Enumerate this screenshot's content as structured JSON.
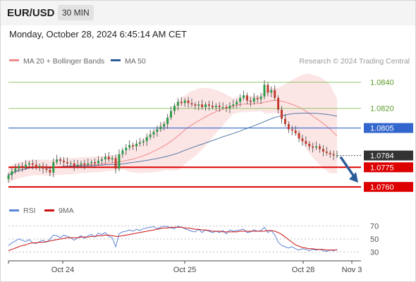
{
  "header": {
    "symbol": "EUR/USD",
    "timeframe": "30 MIN"
  },
  "datetime": "Monday, October 28, 2024 6:45:14 AM CET",
  "colors": {
    "up": "#2a9d4a",
    "down": "#c0392b",
    "bollinger": "#f08a8a",
    "ma50": "#2b5c9a",
    "resistance": "#7cbf4c",
    "pivot": "#3366cc",
    "support": "#dd0000",
    "rsi": "#5b84d6",
    "rsi_ma": "#cc1111",
    "arrow": "#2b5c9a",
    "last_price": "#333333"
  },
  "chart_data": [
    {
      "type": "candlestick",
      "instrument": "EUR/USD",
      "timeframe": "30 MIN",
      "legend": [
        {
          "name": "MA 20 + Bollinger Bands",
          "color": "#f08a8a"
        },
        {
          "name": "MA 50",
          "color": "#2b5c9a"
        }
      ],
      "credit": "Research © 2024 Trading Central",
      "ylim": [
        1.0752,
        1.085
      ],
      "x_ticks": [
        "Oct 24",
        "Oct 25",
        "Oct 28",
        "Nov 3"
      ],
      "levels": [
        {
          "value": 1.084,
          "label": "1.0840",
          "kind": "resistance"
        },
        {
          "value": 1.082,
          "label": "1.0820",
          "kind": "resistance"
        },
        {
          "value": 1.0805,
          "label": "1.0805",
          "kind": "pivot"
        },
        {
          "value": 1.0784,
          "label": "1.0784",
          "kind": "last"
        },
        {
          "value": 1.0775,
          "label": "1.0775",
          "kind": "support"
        },
        {
          "value": 1.076,
          "label": "1.0760",
          "kind": "support"
        }
      ],
      "projection": {
        "from": 1.0784,
        "to": 1.076
      },
      "close": [
        1.0769,
        1.0772,
        1.0774,
        1.0776,
        1.0775,
        1.0777,
        1.0778,
        1.0777,
        1.0775,
        1.0776,
        1.0774,
        1.0773,
        1.0771,
        1.0779,
        1.0781,
        1.078,
        1.0779,
        1.0778,
        1.0778,
        1.0776,
        1.0777,
        1.0778,
        1.0777,
        1.0778,
        1.0779,
        1.0778,
        1.078,
        1.0781,
        1.0783,
        1.0781,
        1.0782,
        1.0774,
        1.0785,
        1.0788,
        1.079,
        1.0792,
        1.0791,
        1.0793,
        1.0794,
        1.0795,
        1.0798,
        1.08,
        1.0802,
        1.0804,
        1.0806,
        1.0808,
        1.0813,
        1.0818,
        1.0822,
        1.0825,
        1.0824,
        1.0826,
        1.0824,
        1.0823,
        1.0822,
        1.0823,
        1.0821,
        1.0823,
        1.0822,
        1.0821,
        1.0822,
        1.0821,
        1.0821,
        1.082,
        1.0822,
        1.0823,
        1.0825,
        1.0828,
        1.083,
        1.0826,
        1.0825,
        1.0828,
        1.0827,
        1.0829,
        1.0838,
        1.0832,
        1.0834,
        1.0828,
        1.0819,
        1.0812,
        1.0808,
        1.0804,
        1.0803,
        1.0801,
        1.0797,
        1.0795,
        1.0793,
        1.0791,
        1.079,
        1.0791,
        1.0789,
        1.0787,
        1.0786,
        1.0785,
        1.0784,
        1.0784
      ]
    },
    {
      "type": "line",
      "legend": [
        {
          "name": "RSI",
          "color": "#5b84d6"
        },
        {
          "name": "9MA",
          "color": "#cc1111"
        }
      ],
      "ylim": [
        25,
        75
      ],
      "y_ticks": [
        70,
        50,
        30
      ],
      "series": [
        {
          "name": "RSI",
          "values": [
            40,
            44,
            47,
            50,
            48,
            46,
            49,
            44,
            43,
            46,
            48,
            45,
            50,
            56,
            55,
            52,
            56,
            54,
            52,
            48,
            52,
            55,
            51,
            55,
            57,
            53,
            59,
            57,
            60,
            54,
            52,
            38,
            58,
            61,
            62,
            64,
            62,
            65,
            63,
            66,
            67,
            68,
            69,
            66,
            68,
            70,
            69,
            67,
            66,
            70,
            68,
            66,
            64,
            62,
            61,
            65,
            60,
            64,
            62,
            60,
            62,
            60,
            63,
            58,
            64,
            62,
            63,
            64,
            65,
            60,
            61,
            64,
            62,
            63,
            68,
            60,
            63,
            56,
            45,
            40,
            38,
            36,
            38,
            35,
            33,
            35,
            34,
            32,
            34,
            33,
            34,
            32,
            31,
            33,
            32,
            34
          ]
        },
        {
          "name": "9MA",
          "values": [
            32,
            34,
            36,
            38,
            40,
            41,
            43,
            44,
            44,
            45,
            45,
            46,
            47,
            48,
            49,
            50,
            51,
            52,
            52,
            52,
            52,
            53,
            53,
            53,
            54,
            54,
            55,
            55,
            56,
            56,
            55,
            54,
            54,
            55,
            56,
            57,
            58,
            59,
            60,
            61,
            62,
            63,
            64,
            65,
            66,
            67,
            67,
            68,
            68,
            68,
            68,
            67,
            67,
            66,
            65,
            65,
            64,
            64,
            63,
            62,
            62,
            62,
            61,
            61,
            61,
            61,
            61,
            62,
            62,
            62,
            62,
            62,
            62,
            62,
            62,
            63,
            63,
            62,
            60,
            57,
            53,
            49,
            45,
            41,
            39,
            37,
            36,
            35,
            35,
            34,
            34,
            34,
            33,
            33,
            33,
            33
          ]
        }
      ]
    }
  ]
}
